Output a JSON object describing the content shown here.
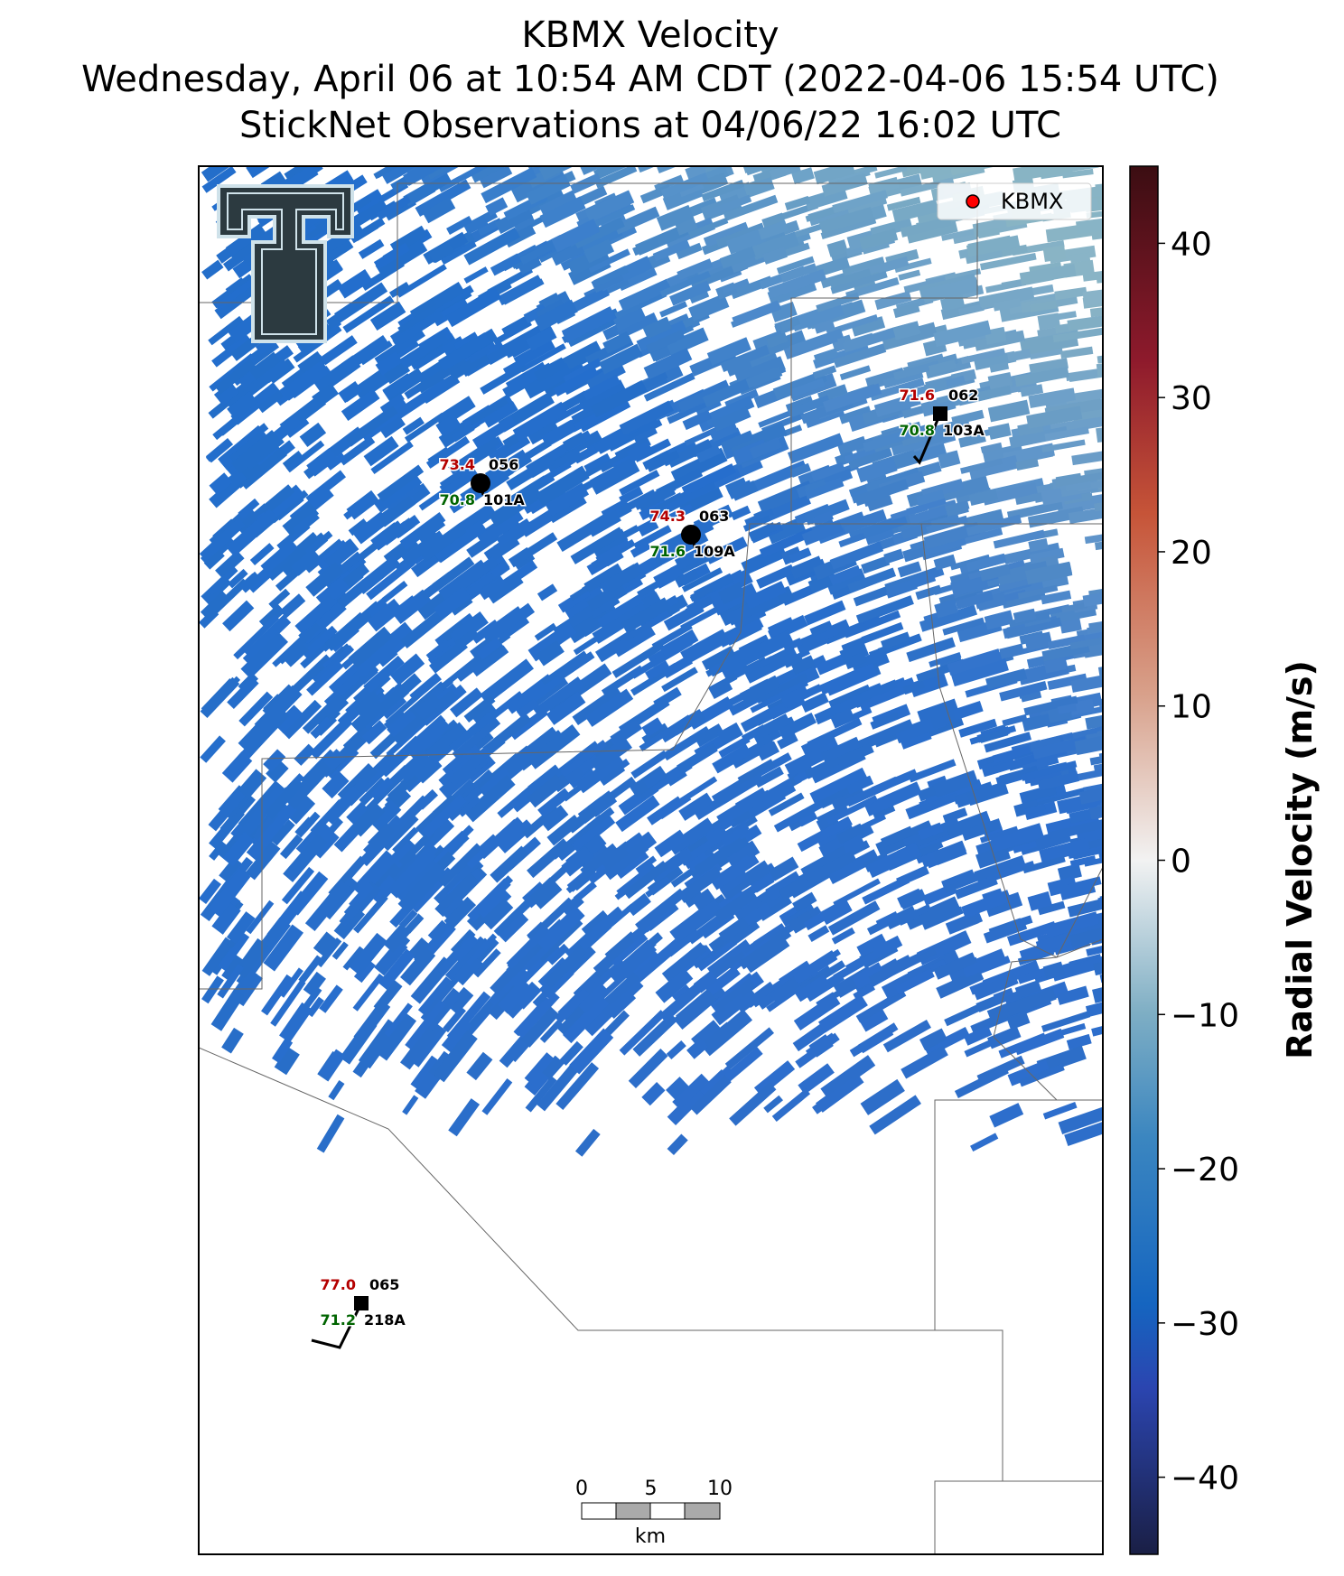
{
  "header": {
    "title": "KBMX Velocity",
    "subtitle": "Wednesday, April 06 at 10:54 AM CDT (2022-04-06 15:54 UTC)",
    "observations": "StickNet Observations at 04/06/22 16:02 UTC"
  },
  "legend": {
    "label": "KBMX",
    "color": "#ff0000"
  },
  "colorbar": {
    "label": "Radial Velocity (m/s)",
    "lim": [
      -45,
      45
    ],
    "ticks": [
      {
        "value": -40,
        "label": "−40"
      },
      {
        "value": -30,
        "label": "−30"
      },
      {
        "value": -20,
        "label": "−20"
      },
      {
        "value": -10,
        "label": "−10"
      },
      0,
      10,
      20,
      30,
      40
    ]
  },
  "stations": [
    {
      "temperature": "73.4",
      "dewpoint": "70.8",
      "id": "056",
      "probe": "101A"
    },
    {
      "temperature": "74.3",
      "dewpoint": "71.6",
      "id": "063",
      "probe": "109A"
    },
    {
      "temperature": "71.6",
      "dewpoint": "70.8",
      "id": "062",
      "probe": "103A"
    },
    {
      "temperature": "77.0",
      "dewpoint": "71.2",
      "id": "065",
      "probe": "218A"
    }
  ],
  "scale_bar": {
    "ticks": [
      0,
      5,
      10
    ],
    "unit": "km"
  }
}
